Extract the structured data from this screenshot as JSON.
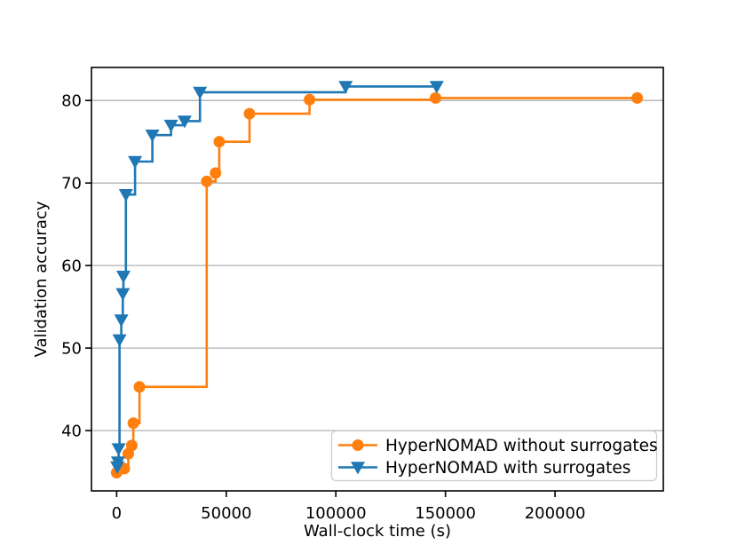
{
  "figure": {
    "background": "#ffffff"
  },
  "chart_data": {
    "type": "line",
    "subtype": "step-post",
    "title": "",
    "xlabel": "Wall-clock time (s)",
    "ylabel": "Validation accuracy",
    "xlim": [
      -11500,
      249400
    ],
    "ylim": [
      32.7,
      84.0
    ],
    "xticks": [
      0,
      50000,
      100000,
      150000,
      200000
    ],
    "yticks": [
      40,
      50,
      60,
      70,
      80
    ],
    "grid": "horizontal",
    "grid_color": "#b0b0b0",
    "axes_color": "#000000",
    "legend": {
      "position": "lower-right",
      "frame_color": "#cccccc",
      "entries": [
        {
          "label": "HyperNOMAD without surrogates",
          "color": "#ff7f0e",
          "marker": "circle"
        },
        {
          "label": "HyperNOMAD with surrogates",
          "color": "#1f77b4",
          "marker": "triangle-down"
        }
      ]
    },
    "series": [
      {
        "name": "HyperNOMAD without surrogates",
        "color": "#ff7f0e",
        "marker": "circle",
        "step": "post",
        "points": [
          [
            0,
            34.9
          ],
          [
            3500,
            35.4
          ],
          [
            5300,
            37.2
          ],
          [
            6900,
            38.2
          ],
          [
            7600,
            40.9
          ],
          [
            10400,
            45.3
          ],
          [
            41100,
            70.2
          ],
          [
            45100,
            71.2
          ],
          [
            46800,
            75.0
          ],
          [
            60600,
            78.4
          ],
          [
            88000,
            80.1
          ],
          [
            145500,
            80.3
          ],
          [
            237500,
            80.3
          ]
        ]
      },
      {
        "name": "HyperNOMAD with surrogates",
        "color": "#1f77b4",
        "marker": "triangle-down",
        "step": "post",
        "points": [
          [
            300,
            35.6
          ],
          [
            600,
            36.2
          ],
          [
            900,
            37.8
          ],
          [
            1300,
            51.0
          ],
          [
            2100,
            53.4
          ],
          [
            2800,
            56.6
          ],
          [
            3100,
            58.7
          ],
          [
            4200,
            68.6
          ],
          [
            8400,
            72.6
          ],
          [
            16300,
            75.8
          ],
          [
            24800,
            77.0
          ],
          [
            31000,
            77.5
          ],
          [
            38000,
            81.0
          ],
          [
            104500,
            81.7
          ],
          [
            146000,
            81.7
          ]
        ]
      }
    ]
  }
}
